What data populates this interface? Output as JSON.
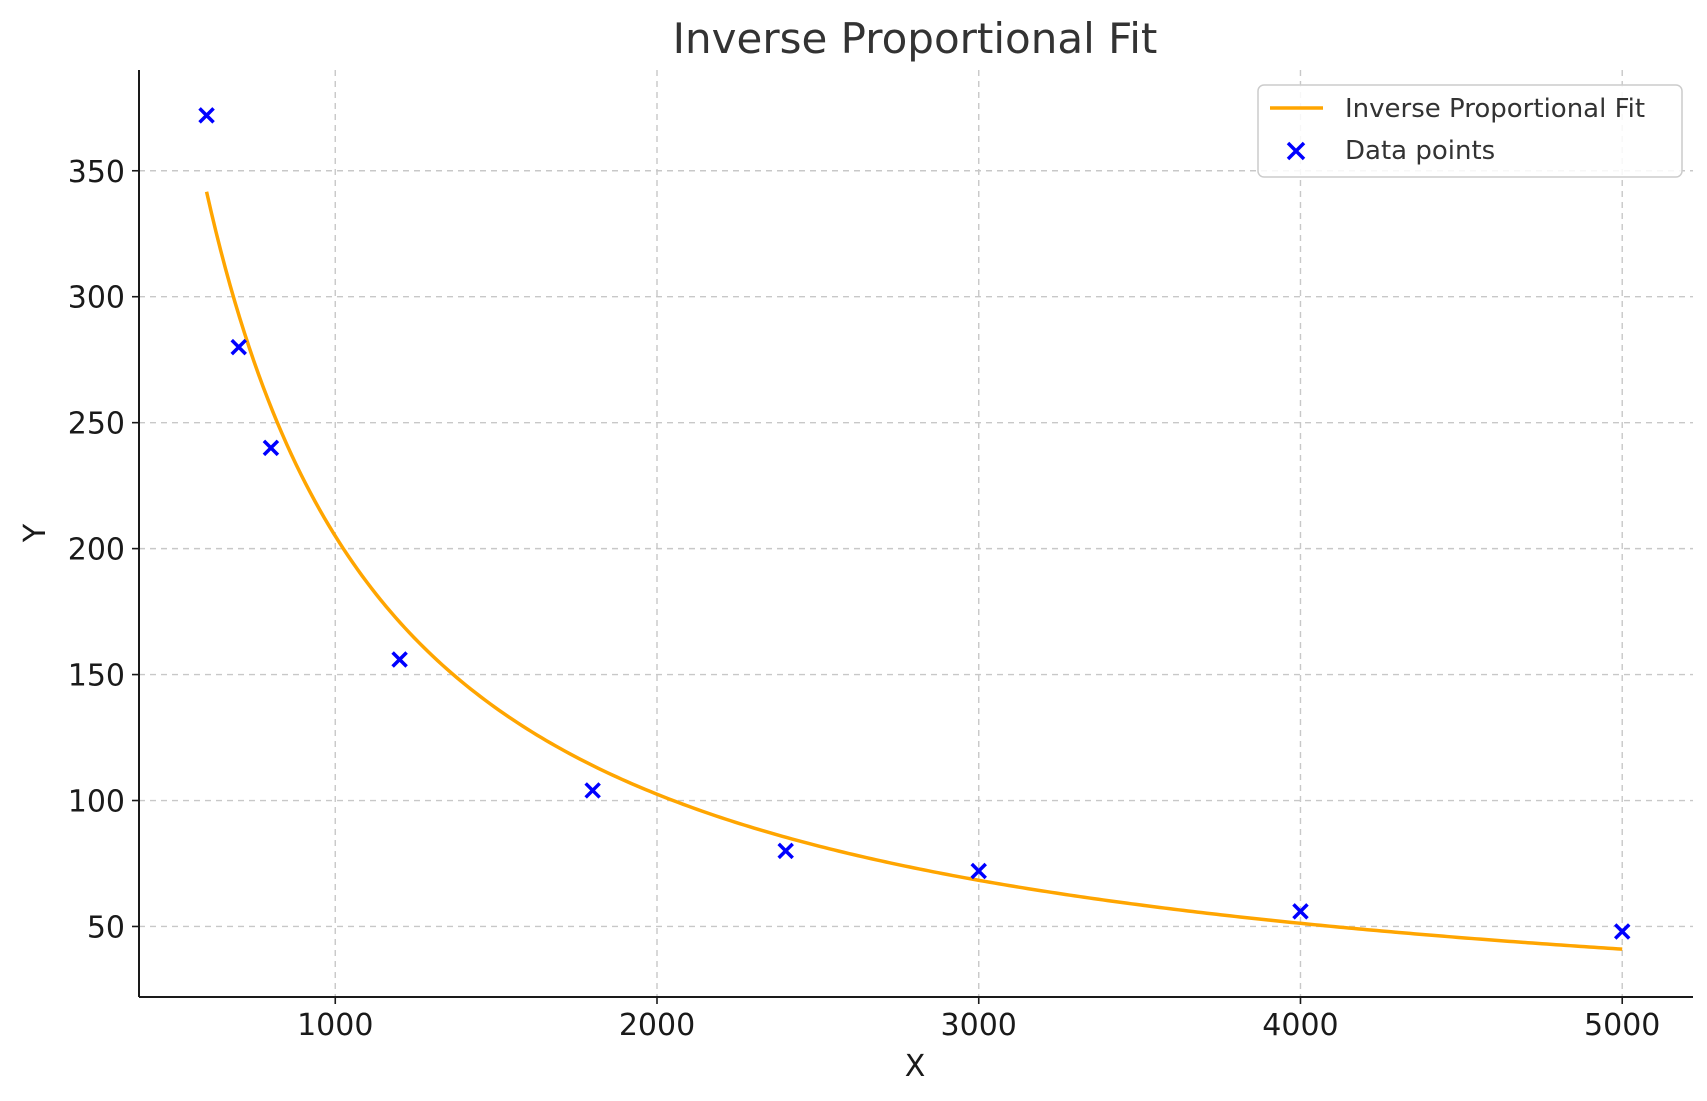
{
  "chart_data": {
    "type": "scatter",
    "title": "Inverse Proportional Fit",
    "xlabel": "X",
    "ylabel": "Y",
    "xlim": [
      390,
      5220
    ],
    "ylim": [
      22,
      390
    ],
    "xticks": [
      1000,
      2000,
      3000,
      4000,
      5000
    ],
    "yticks": [
      50,
      100,
      150,
      200,
      250,
      300,
      350
    ],
    "grid": true,
    "legend_position": "top-right",
    "series": [
      {
        "name": "Inverse Proportional Fit",
        "kind": "line",
        "color": "#ffa500",
        "equation": "y = 205000 / x",
        "k": 205000,
        "x_range": [
          600,
          5000
        ]
      },
      {
        "name": "Data points",
        "kind": "scatter",
        "marker": "x",
        "color": "#0000ff",
        "x": [
          600,
          700,
          800,
          1200,
          1800,
          2400,
          3000,
          4000,
          5000
        ],
        "y": [
          372,
          280,
          240,
          156,
          104,
          80,
          72,
          56,
          48
        ]
      }
    ]
  }
}
